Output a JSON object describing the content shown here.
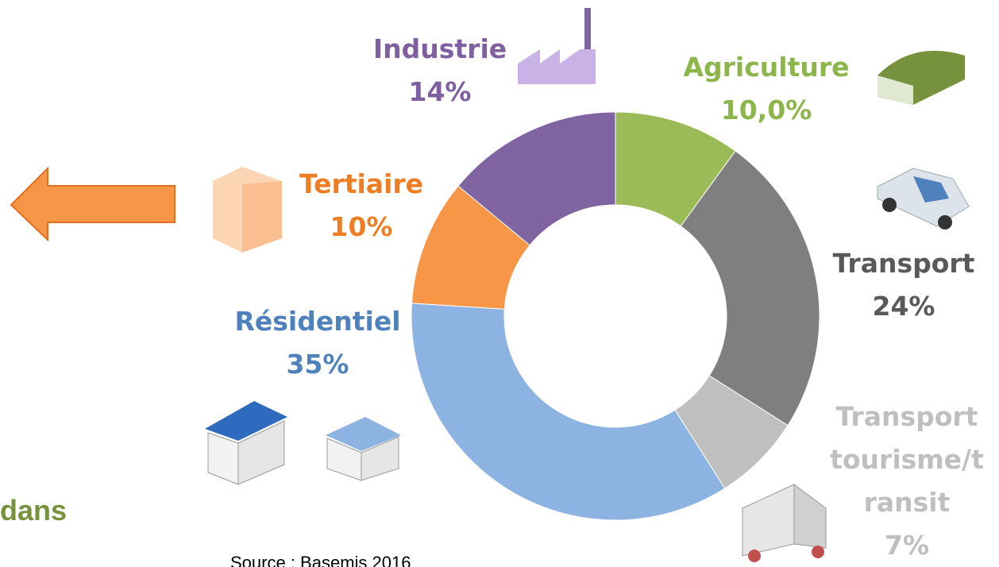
{
  "chart_data": {
    "type": "donut",
    "categories": [
      "Agriculture",
      "Transport",
      "Transport tourisme/transit",
      "Résidentiel",
      "Tertiaire",
      "Industrie"
    ],
    "values": [
      10,
      24,
      7,
      35,
      10,
      14
    ],
    "value_labels": [
      "10,0%",
      "24%",
      "7%",
      "35%",
      "10%",
      "14%"
    ],
    "colors": [
      "#9bbb59",
      "#7f7f7f",
      "#bfbfbf",
      "#8db3e2",
      "#f79646",
      "#8064a2"
    ],
    "label_colors": [
      "#8db64a",
      "#595959",
      "#bfbfbf",
      "#4f81bd",
      "#ef7d22",
      "#7f5fa0"
    ]
  },
  "fragment": "dans",
  "source": "Source : Basemis 2016"
}
